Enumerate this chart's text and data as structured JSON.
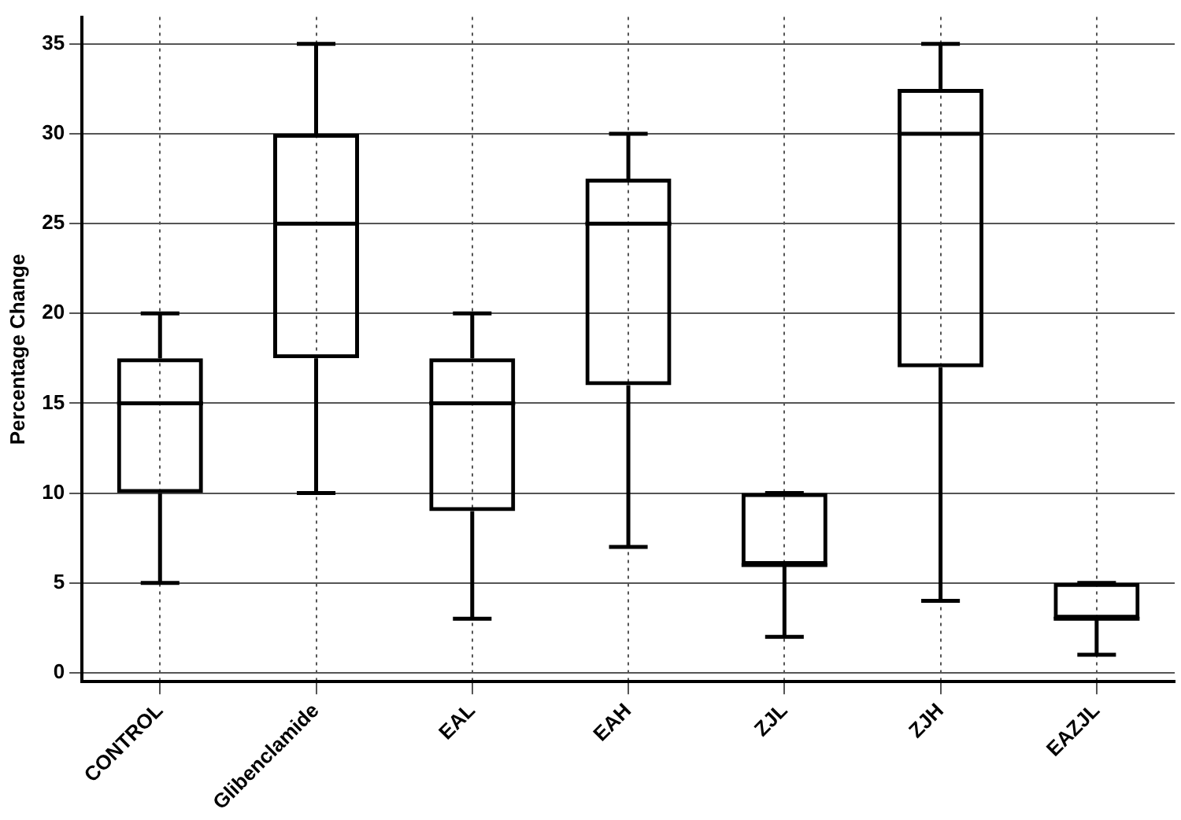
{
  "chart_data": {
    "type": "box",
    "ylabel": "Percentage Change",
    "categories": [
      "CONTROL",
      "Glibenclamide",
      "EAL",
      "EAH",
      "ZJL",
      "ZJH",
      "EAZJL"
    ],
    "boxes": [
      {
        "low": 5,
        "q1": 10,
        "median": 15,
        "q3": 17.5,
        "high": 20
      },
      {
        "low": 10,
        "q1": 17.5,
        "median": 25,
        "q3": 30,
        "high": 35
      },
      {
        "low": 3,
        "q1": 9,
        "median": 15,
        "q3": 17.5,
        "high": 20
      },
      {
        "low": 7,
        "q1": 16,
        "median": 25,
        "q3": 27.5,
        "high": 30
      },
      {
        "low": 2,
        "q1": 6,
        "median": 6,
        "q3": 10,
        "high": 10
      },
      {
        "low": 4,
        "q1": 17,
        "median": 30,
        "q3": 32.5,
        "high": 35
      },
      {
        "low": 1,
        "q1": 3,
        "median": 3,
        "q3": 5,
        "high": 5
      }
    ],
    "color": "#000000",
    "ylim": [
      -0.5,
      36.5
    ],
    "yticks": [
      0,
      5,
      10,
      15,
      20,
      25,
      30,
      35
    ],
    "grid": true,
    "legend": false
  }
}
